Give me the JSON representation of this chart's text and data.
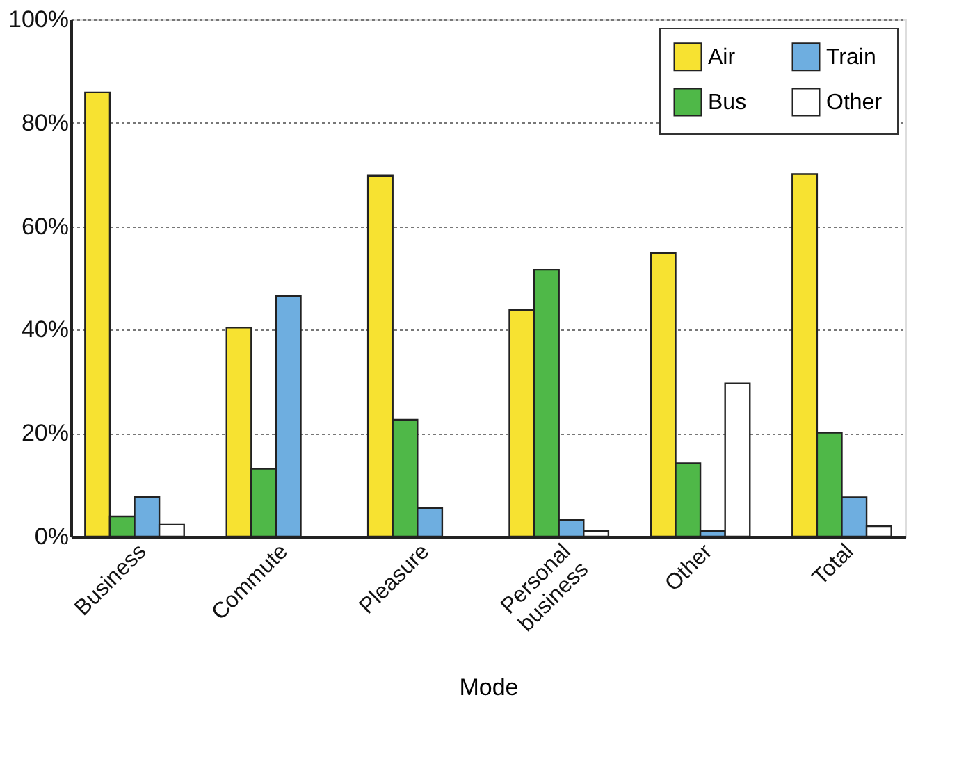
{
  "chart_data": {
    "type": "bar",
    "xlabel": "Mode",
    "categories": [
      "Business",
      "Commute",
      "Pleasure",
      "Personal business",
      "Other",
      "Total"
    ],
    "series": [
      {
        "name": "Air",
        "color": "#f7e231",
        "values": [
          85.9,
          40.4,
          69.8,
          43.8,
          54.8,
          70.1
        ]
      },
      {
        "name": "Bus",
        "color": "#4fb848",
        "values": [
          3.9,
          13.1,
          22.6,
          51.6,
          14.2,
          20.1
        ]
      },
      {
        "name": "Train",
        "color": "#6eaee0",
        "values": [
          7.7,
          46.5,
          5.5,
          3.2,
          1.1,
          7.6
        ]
      },
      {
        "name": "Other",
        "color": "#ffffff",
        "values": [
          2.3,
          null,
          null,
          1.1,
          29.6,
          2.0
        ]
      }
    ],
    "ylim": [
      0,
      100
    ],
    "yticks": [
      {
        "value": 0,
        "label": "0%"
      },
      {
        "value": 20,
        "label": "20%"
      },
      {
        "value": 40,
        "label": "40%"
      },
      {
        "value": 60,
        "label": "60%"
      },
      {
        "value": 80,
        "label": "80%"
      },
      {
        "value": 100,
        "label": "100%"
      }
    ],
    "grid": "y",
    "legend": "top right"
  }
}
